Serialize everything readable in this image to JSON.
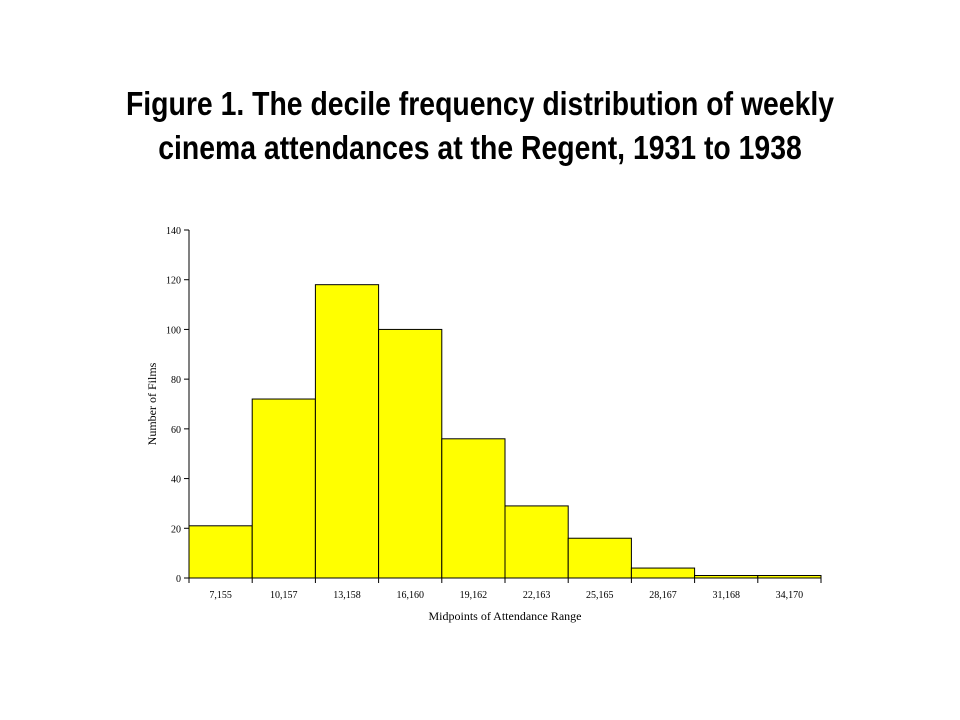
{
  "title_lines": [
    "Figure 1. The decile frequency distribution of weekly",
    "cinema attendances at the Regent, 1931 to 1938"
  ],
  "chart_data": {
    "type": "bar",
    "title": "Figure 1. The decile frequency distribution of weekly cinema attendances at the Regent, 1931 to 1938",
    "xlabel": "Midpoints of Attendance Range",
    "ylabel": "Number of Films",
    "categories": [
      "7,155",
      "10,157",
      "13,158",
      "16,160",
      "19,162",
      "22,163",
      "25,165",
      "28,167",
      "31,168",
      "34,170"
    ],
    "values": [
      21,
      72,
      118,
      100,
      56,
      29,
      16,
      4,
      1,
      1
    ],
    "ylim": [
      0,
      140
    ],
    "yticks": [
      0,
      20,
      40,
      60,
      80,
      100,
      120,
      140
    ],
    "bar_color": "#ffff00",
    "bar_edge_color": "#000000",
    "grid": false,
    "legend": "none"
  }
}
